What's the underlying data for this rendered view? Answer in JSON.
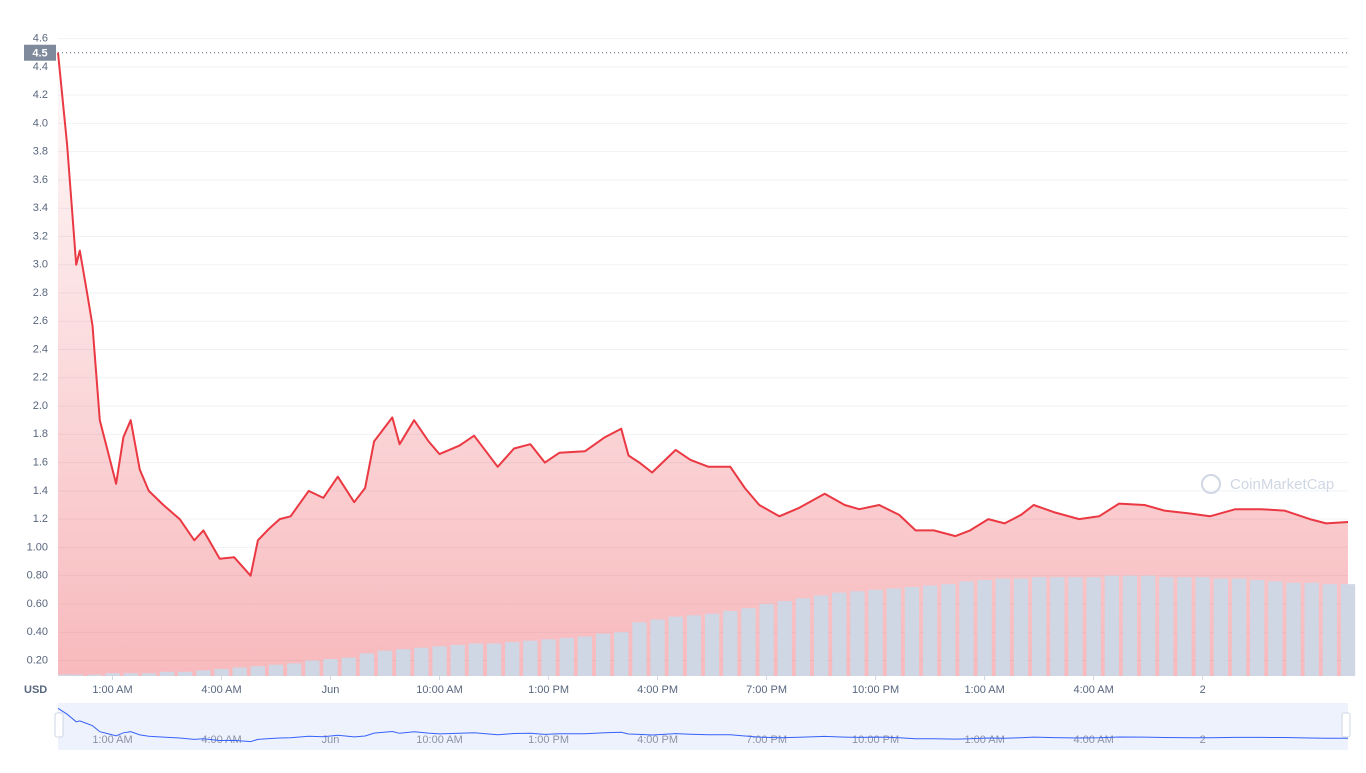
{
  "chart_data": {
    "type": "line",
    "currency": "USD",
    "watermark": "CoinMarketCap",
    "marker": 4.5,
    "xlim": [
      -0.5,
      35.0
    ],
    "ylim": [
      0.09,
      4.76
    ],
    "y2lim": [
      0.09,
      4.76
    ],
    "grid": true,
    "xticks": [
      {
        "value": 1,
        "label": "1:00 AM"
      },
      {
        "value": 4,
        "label": "4:00 AM"
      },
      {
        "value": 7,
        "label": "Jun"
      },
      {
        "value": 10,
        "label": "10:00 AM"
      },
      {
        "value": 13,
        "label": "1:00 PM"
      },
      {
        "value": 16,
        "label": "4:00 PM"
      },
      {
        "value": 19,
        "label": "7:00 PM"
      },
      {
        "value": 22,
        "label": "10:00 PM"
      },
      {
        "value": 25,
        "label": "1:00 AM"
      },
      {
        "value": 28,
        "label": "4:00 AM"
      },
      {
        "value": 31,
        "label": "2"
      }
    ],
    "yticks": [
      4.6,
      4.4,
      4.2,
      {
        "value": 4,
        "label": "4.0"
      },
      3.8,
      3.6,
      3.4,
      3.2,
      {
        "value": 3,
        "label": "3.0"
      },
      2.8,
      2.6,
      2.4,
      2.2,
      {
        "value": 2,
        "label": "2.0"
      },
      1.8,
      1.6,
      1.4,
      1.2,
      {
        "value": 1,
        "label": "1.00"
      },
      {
        "value": 0.8,
        "label": "0.80"
      },
      {
        "value": 0.6,
        "label": "0.60"
      },
      {
        "value": 0.4,
        "label": "0.40"
      },
      {
        "value": 0.2,
        "label": "0.20"
      }
    ],
    "series": [
      {
        "color": "#ea3943",
        "x": [
          -0.5,
          -0.25,
          0,
          0.1,
          0.3,
          0.45,
          0.65,
          0.85,
          1.1,
          1.3,
          1.5,
          1.75,
          2,
          2.4,
          2.85,
          3.25,
          3.5,
          3.95,
          4.35,
          4.8,
          5.0,
          5.3,
          5.6,
          5.9,
          6.4,
          6.8,
          7.2,
          7.65,
          7.95,
          8.2,
          8.7,
          8.9,
          9.3,
          9.7,
          10,
          10.55,
          10.95,
          11.6,
          12.05,
          12.5,
          12.9,
          13.3,
          14,
          14.55,
          15,
          15.2,
          15.5,
          15.85,
          16.5,
          16.9,
          17.4,
          18,
          18.4,
          18.8,
          19.35,
          19.9,
          20.6,
          21.15,
          21.55,
          22.1,
          22.65,
          23.1,
          23.6,
          24.2,
          24.6,
          25.1,
          25.55,
          26,
          26.35,
          26.9,
          27.6,
          28.15,
          28.7,
          29.4,
          29.95,
          30.65,
          31.2,
          31.9,
          32.6,
          33.25,
          33.95,
          34.4,
          35.0
        ],
        "values": [
          4.5,
          3.85,
          3.0,
          3.1,
          2.8,
          2.57,
          1.9,
          1.7,
          1.45,
          1.78,
          1.9,
          1.55,
          1.4,
          1.3,
          1.2,
          1.05,
          1.12,
          0.92,
          0.93,
          0.8,
          1.05,
          1.13,
          1.2,
          1.22,
          1.4,
          1.35,
          1.5,
          1.32,
          1.42,
          1.75,
          1.92,
          1.73,
          1.9,
          1.75,
          1.66,
          1.72,
          1.79,
          1.57,
          1.7,
          1.73,
          1.6,
          1.67,
          1.68,
          1.78,
          1.84,
          1.65,
          1.6,
          1.53,
          1.69,
          1.62,
          1.57,
          1.57,
          1.42,
          1.3,
          1.22,
          1.28,
          1.38,
          1.3,
          1.27,
          1.3,
          1.23,
          1.12,
          1.12,
          1.08,
          1.12,
          1.2,
          1.17,
          1.23,
          1.3,
          1.25,
          1.2,
          1.22,
          1.31,
          1.3,
          1.26,
          1.24,
          1.22,
          1.27,
          1.27,
          1.26,
          1.2,
          1.17,
          1.18
        ]
      }
    ],
    "volume": {
      "axis": "y2",
      "color": "#cfd6e4",
      "x": [
        -0.5,
        0,
        0.5,
        1,
        1.5,
        2,
        2.5,
        3,
        3.5,
        4,
        4.5,
        5,
        5.5,
        6,
        6.5,
        7,
        7.5,
        8,
        8.5,
        9,
        9.5,
        10,
        10.5,
        11,
        11.5,
        12,
        12.5,
        13,
        13.5,
        14,
        14.5,
        15,
        15.5,
        16,
        16.5,
        17,
        17.5,
        18,
        18.5,
        19,
        19.5,
        20,
        20.5,
        21,
        21.5,
        22,
        22.5,
        23,
        23.5,
        24,
        24.5,
        25,
        25.5,
        26,
        26.5,
        27,
        27.5,
        28,
        28.5,
        29,
        29.5,
        30,
        30.5,
        31,
        31.5,
        32,
        32.5,
        33,
        33.5,
        34,
        34.5,
        35
      ],
      "values": [
        0.1,
        0.1,
        0.1,
        0.11,
        0.11,
        0.11,
        0.12,
        0.12,
        0.13,
        0.14,
        0.15,
        0.16,
        0.17,
        0.18,
        0.2,
        0.21,
        0.22,
        0.25,
        0.27,
        0.28,
        0.29,
        0.3,
        0.31,
        0.32,
        0.32,
        0.33,
        0.34,
        0.35,
        0.36,
        0.37,
        0.39,
        0.4,
        0.47,
        0.49,
        0.51,
        0.52,
        0.53,
        0.55,
        0.57,
        0.6,
        0.62,
        0.64,
        0.66,
        0.68,
        0.69,
        0.7,
        0.71,
        0.72,
        0.73,
        0.74,
        0.76,
        0.77,
        0.78,
        0.78,
        0.79,
        0.79,
        0.79,
        0.79,
        0.8,
        0.8,
        0.8,
        0.79,
        0.79,
        0.79,
        0.78,
        0.78,
        0.77,
        0.76,
        0.75,
        0.75,
        0.74,
        0.74
      ]
    }
  }
}
